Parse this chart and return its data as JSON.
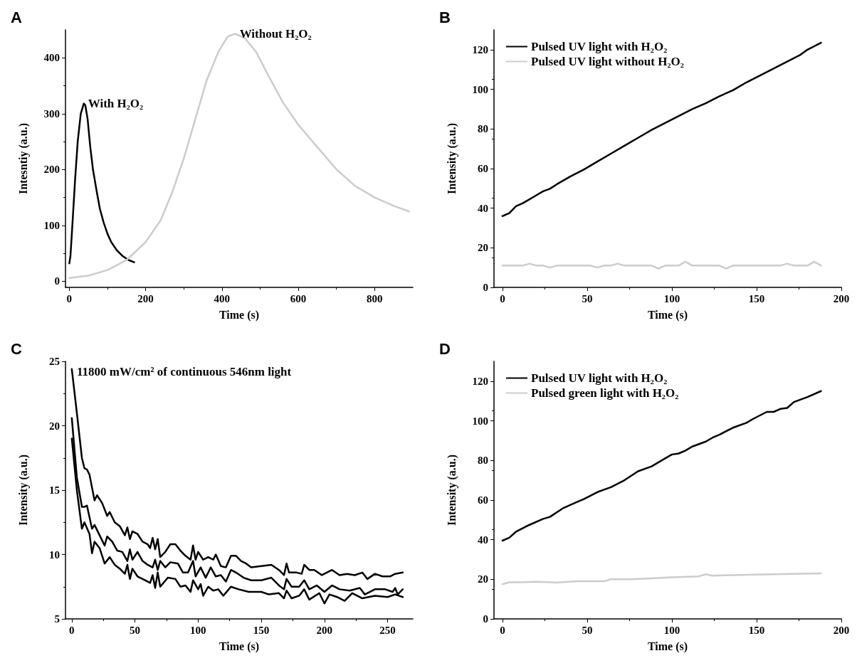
{
  "chart_data": [
    {
      "type": "line",
      "title": "A",
      "xlabel": "Time (s)",
      "ylabel": "Intesntiy (a.u.)",
      "xlim": [
        -10,
        900
      ],
      "xticks": [
        0,
        200,
        400,
        600,
        800
      ],
      "ylim": [
        -11,
        450
      ],
      "yticks": [
        0,
        100,
        200,
        300,
        400
      ],
      "grid": false,
      "legend": false,
      "marker": "none",
      "line_style": "solid",
      "series": [
        {
          "name": "With H₂O₂",
          "color": "#000000",
          "x": [
            0,
            3,
            8,
            15,
            22,
            30,
            38,
            42,
            48,
            55,
            62,
            72,
            80,
            90,
            100,
            110,
            125,
            140,
            155,
            170
          ],
          "values": [
            32,
            45,
            100,
            180,
            250,
            300,
            318,
            315,
            290,
            240,
            200,
            160,
            130,
            105,
            85,
            70,
            55,
            45,
            38,
            34
          ]
        },
        {
          "name": "Without H₂O₂",
          "color": "#cccccc",
          "x": [
            0,
            50,
            100,
            150,
            200,
            240,
            270,
            300,
            330,
            360,
            390,
            415,
            435,
            460,
            490,
            520,
            560,
            600,
            650,
            700,
            750,
            800,
            850,
            890
          ],
          "values": [
            6,
            10,
            20,
            38,
            70,
            110,
            160,
            220,
            290,
            360,
            410,
            438,
            443,
            435,
            410,
            370,
            320,
            280,
            240,
            200,
            170,
            150,
            135,
            125
          ]
        }
      ]
    },
    {
      "type": "line",
      "title": "B",
      "xlabel": "Time (s)",
      "ylabel": "Intensity (a.u.)",
      "xlim": [
        -5,
        200
      ],
      "xticks": [
        0,
        50,
        100,
        150,
        200
      ],
      "ylim": [
        0,
        130
      ],
      "yticks": [
        0,
        20,
        40,
        60,
        80,
        100,
        120
      ],
      "grid": false,
      "legend": "top left",
      "marker": "none",
      "line_style": "solid",
      "series": [
        {
          "name": "Pulsed UV light with H₂O₂",
          "color": "#000000",
          "x": [
            0,
            4,
            8,
            12,
            16,
            20,
            24,
            28,
            32,
            40,
            48,
            56,
            64,
            72,
            80,
            88,
            96,
            104,
            112,
            120,
            128,
            136,
            144,
            152,
            160,
            168,
            176,
            180,
            188
          ],
          "values": [
            36,
            37.5,
            41,
            42.5,
            44.5,
            46.5,
            48.5,
            49.8,
            52,
            56,
            59.5,
            63.5,
            67.5,
            71.5,
            75.5,
            79.5,
            83,
            86.5,
            90,
            93,
            96.5,
            99.5,
            103.5,
            107,
            110.5,
            114,
            117.5,
            120,
            123.5
          ]
        },
        {
          "name": "Pulsed UV light without H₂O₂",
          "color": "#cccccc",
          "x": [
            0,
            12,
            16,
            20,
            24,
            28,
            32,
            52,
            56,
            60,
            64,
            68,
            72,
            88,
            92,
            96,
            104,
            108,
            112,
            128,
            132,
            136,
            164,
            168,
            172,
            180,
            184,
            188
          ],
          "values": [
            11,
            11,
            12,
            11,
            11,
            10,
            11,
            11,
            10,
            11,
            11,
            12,
            11,
            11,
            9.5,
            11,
            11,
            13,
            11,
            11,
            9.5,
            11,
            11,
            12,
            11,
            11,
            13,
            11
          ]
        }
      ]
    },
    {
      "type": "line",
      "title": "C",
      "xlabel": "Time (s)",
      "ylabel": "Intensity (a.u.)",
      "xlim": [
        -5,
        270
      ],
      "xticks": [
        0,
        50,
        100,
        150,
        200,
        250
      ],
      "ylim": [
        5,
        25
      ],
      "yticks": [
        5,
        10,
        15,
        20,
        25
      ],
      "grid": false,
      "legend": false,
      "marker": "none",
      "line_style": "solid",
      "annotations": [
        "11800 mW/cm² of continuous 546nm light"
      ],
      "series": [
        {
          "color": "#000000",
          "x": [
            0,
            4,
            8,
            10,
            12,
            14,
            16,
            18,
            20,
            24,
            28,
            30,
            34,
            38,
            42,
            44,
            46,
            48,
            52,
            56,
            60,
            62,
            64,
            66,
            68,
            70,
            74,
            78,
            82,
            86,
            90,
            94,
            96,
            98,
            100,
            104,
            108,
            112,
            114,
            118,
            122,
            126,
            130,
            134,
            138,
            142,
            150,
            158,
            164,
            168,
            170,
            172,
            178,
            182,
            184,
            188,
            192,
            198,
            206,
            212,
            218,
            224,
            230,
            234,
            240,
            246,
            252,
            256,
            262
          ],
          "values": [
            24.4,
            21,
            17.5,
            16.7,
            16.6,
            16.2,
            15.2,
            14.2,
            14.6,
            14,
            13,
            13.3,
            12.5,
            12.2,
            11.5,
            12.1,
            11.2,
            11.8,
            11.6,
            11,
            10.8,
            10.5,
            11.3,
            10.4,
            11.2,
            9.8,
            10.2,
            10.8,
            10.8,
            10.3,
            9.9,
            9.6,
            10.7,
            9.6,
            10.2,
            9.6,
            9.8,
            9.6,
            10,
            9.1,
            9,
            9.9,
            9.9,
            9.5,
            9.3,
            9,
            9.1,
            9.2,
            8.8,
            8.4,
            9.3,
            8.6,
            8.6,
            8.5,
            9.2,
            8.8,
            8.8,
            8.4,
            8.8,
            8.4,
            8.5,
            8.4,
            8.6,
            8.1,
            8.5,
            8.3,
            8.3,
            8.5,
            8.6
          ]
        },
        {
          "color": "#000000",
          "x": [
            0,
            4,
            8,
            10,
            12,
            16,
            18,
            22,
            26,
            28,
            32,
            36,
            40,
            44,
            46,
            48,
            52,
            56,
            60,
            64,
            66,
            68,
            70,
            74,
            78,
            84,
            88,
            92,
            96,
            98,
            102,
            106,
            110,
            114,
            118,
            122,
            126,
            130,
            136,
            142,
            150,
            158,
            164,
            168,
            170,
            174,
            180,
            184,
            188,
            194,
            200,
            206,
            212,
            220,
            228,
            232,
            240,
            248,
            254,
            256,
            258,
            262
          ],
          "values": [
            20.6,
            16,
            13.7,
            13.7,
            13.8,
            12,
            12.3,
            11.5,
            10.7,
            11.4,
            11,
            10.3,
            10.2,
            9.5,
            10.4,
            9.6,
            10.2,
            9.5,
            9.2,
            9,
            9.6,
            8.8,
            9.5,
            9,
            9.4,
            9.3,
            8.6,
            8.6,
            9.5,
            8.3,
            9,
            8.2,
            9,
            8.3,
            8.4,
            7.9,
            8.8,
            8.6,
            8.2,
            8,
            8,
            8.2,
            7.6,
            7.3,
            8.1,
            7.5,
            7.5,
            8,
            7.3,
            7.6,
            7.1,
            7.6,
            7.3,
            7.2,
            7.4,
            6.9,
            7.3,
            7.3,
            7.1,
            7.4,
            6.9,
            7.3
          ]
        },
        {
          "color": "#000000",
          "x": [
            0,
            4,
            8,
            10,
            14,
            16,
            18,
            22,
            26,
            30,
            34,
            38,
            42,
            44,
            46,
            48,
            52,
            58,
            62,
            64,
            66,
            68,
            70,
            76,
            82,
            86,
            90,
            94,
            96,
            100,
            102,
            104,
            108,
            112,
            116,
            120,
            126,
            132,
            140,
            150,
            156,
            164,
            168,
            170,
            174,
            180,
            184,
            188,
            196,
            200,
            204,
            210,
            216,
            222,
            230,
            240,
            250,
            256,
            262
          ],
          "values": [
            19,
            15,
            12,
            12.5,
            11.6,
            10.1,
            11,
            10.5,
            9.3,
            9.8,
            9.2,
            8.9,
            8.5,
            9.2,
            8.1,
            8.9,
            8.3,
            8,
            7.8,
            8.4,
            7.4,
            8.6,
            7.5,
            8.2,
            8.1,
            7.5,
            7.6,
            7.1,
            8,
            7.3,
            7.7,
            6.8,
            7.5,
            7.2,
            7.3,
            6.8,
            7.5,
            7.3,
            7.1,
            7.1,
            6.9,
            7,
            6.6,
            7.2,
            6.6,
            6.8,
            7.3,
            6.5,
            7,
            6.2,
            6.9,
            6.7,
            6.4,
            7,
            6.6,
            6.8,
            6.7,
            6.9,
            6.7
          ]
        }
      ]
    },
    {
      "type": "line",
      "title": "D",
      "xlabel": "Time (s)",
      "ylabel": "Intensity (a.u.)",
      "xlim": [
        -5,
        200
      ],
      "xticks": [
        0,
        50,
        100,
        150,
        200
      ],
      "ylim": [
        0,
        130
      ],
      "yticks": [
        0,
        20,
        40,
        60,
        80,
        100,
        120
      ],
      "grid": false,
      "legend": "top left",
      "marker": "none",
      "line_style": "solid",
      "series": [
        {
          "name": "Pulsed UV light with H₂O₂",
          "color": "#000000",
          "x": [
            0,
            4,
            8,
            16,
            24,
            28,
            36,
            44,
            48,
            56,
            64,
            72,
            80,
            88,
            96,
            100,
            104,
            108,
            112,
            120,
            124,
            128,
            136,
            144,
            148,
            156,
            160,
            164,
            168,
            172,
            180,
            188
          ],
          "values": [
            39.5,
            41,
            44,
            47.5,
            50.5,
            51.5,
            56,
            59,
            60.5,
            64,
            66.5,
            70,
            74.5,
            77,
            81,
            83,
            83.5,
            85,
            87,
            89.5,
            91.5,
            93,
            96.5,
            99,
            101,
            104.5,
            104.5,
            106,
            106.5,
            109.5,
            112,
            115
          ]
        },
        {
          "name": "Pulsed green light with H₂O₂",
          "color": "#cccccc",
          "x": [
            0,
            4,
            12,
            20,
            32,
            44,
            60,
            64,
            76,
            88,
            100,
            116,
            120,
            124,
            140,
            160,
            188
          ],
          "values": [
            17.5,
            18.5,
            18.5,
            18.8,
            18.3,
            19,
            19,
            20,
            20,
            20.5,
            21,
            21.5,
            22.5,
            21.8,
            22.2,
            22.5,
            23
          ]
        }
      ]
    }
  ]
}
